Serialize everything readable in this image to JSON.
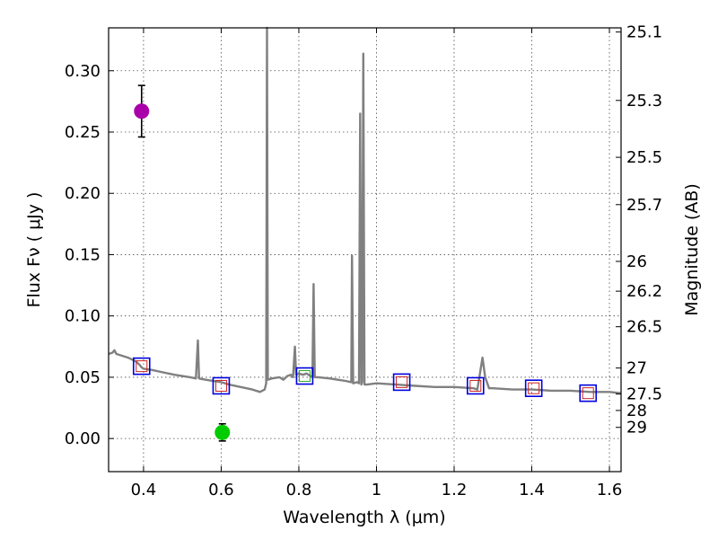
{
  "chart_data": {
    "type": "line",
    "xlabel": "Wavelength  λ (μm)",
    "ylabel": "Flux  Fν  ( μJy )",
    "ylabel_right": "Magnitude (AB)",
    "xlim": [
      0.31,
      1.63
    ],
    "ylim": [
      -0.027,
      0.335
    ],
    "x_ticks": [
      0.4,
      0.6,
      0.8,
      1.0,
      1.2,
      1.4,
      1.6
    ],
    "x_tick_labels": [
      "0.4",
      "0.6",
      "0.8",
      "1",
      "1.2",
      "1.4",
      "1.6"
    ],
    "y_ticks": [
      0.0,
      0.05,
      0.1,
      0.15,
      0.2,
      0.25,
      0.3
    ],
    "y_tick_labels": [
      "0.00",
      "0.05",
      "0.10",
      "0.15",
      "0.20",
      "0.25",
      "0.30"
    ],
    "right_ticks": [
      {
        "label": "25.1",
        "flux": 0.3316
      },
      {
        "label": "25.3",
        "flux": 0.2758
      },
      {
        "label": "25.5",
        "flux": 0.2294
      },
      {
        "label": "25.7",
        "flux": 0.1908
      },
      {
        "label": "26",
        "flux": 0.1445
      },
      {
        "label": "26.2",
        "flux": 0.1202
      },
      {
        "label": "26.5",
        "flux": 0.0912
      },
      {
        "label": "27",
        "flux": 0.0575
      },
      {
        "label": "27.5",
        "flux": 0.0363
      },
      {
        "label": "28",
        "flux": 0.0229
      },
      {
        "label": "29",
        "flux": 0.0091
      }
    ],
    "grid": true,
    "sed_model": {
      "name": "model SED",
      "color": "#808080",
      "points": [
        [
          0.31,
          0.069
        ],
        [
          0.32,
          0.07
        ],
        [
          0.325,
          0.072
        ],
        [
          0.33,
          0.069
        ],
        [
          0.34,
          0.068
        ],
        [
          0.36,
          0.066
        ],
        [
          0.38,
          0.063
        ],
        [
          0.39,
          0.06
        ],
        [
          0.395,
          0.058
        ],
        [
          0.4,
          0.057
        ],
        [
          0.42,
          0.056
        ],
        [
          0.45,
          0.054
        ],
        [
          0.48,
          0.052
        ],
        [
          0.5,
          0.051
        ],
        [
          0.52,
          0.05
        ],
        [
          0.535,
          0.049
        ],
        [
          0.54,
          0.08
        ],
        [
          0.543,
          0.049
        ],
        [
          0.56,
          0.048
        ],
        [
          0.6,
          0.046
        ],
        [
          0.62,
          0.044
        ],
        [
          0.65,
          0.042
        ],
        [
          0.68,
          0.04
        ],
        [
          0.7,
          0.038
        ],
        [
          0.712,
          0.04
        ],
        [
          0.716,
          0.045
        ],
        [
          0.718,
          0.335
        ],
        [
          0.72,
          0.048
        ],
        [
          0.73,
          0.049
        ],
        [
          0.75,
          0.05
        ],
        [
          0.76,
          0.048
        ],
        [
          0.77,
          0.051
        ],
        [
          0.78,
          0.052
        ],
        [
          0.785,
          0.05
        ],
        [
          0.79,
          0.075
        ],
        [
          0.793,
          0.052
        ],
        [
          0.8,
          0.053
        ],
        [
          0.81,
          0.052
        ],
        [
          0.82,
          0.053
        ],
        [
          0.83,
          0.051
        ],
        [
          0.835,
          0.05
        ],
        [
          0.838,
          0.126
        ],
        [
          0.841,
          0.05
        ],
        [
          0.85,
          0.05
        ],
        [
          0.88,
          0.049
        ],
        [
          0.9,
          0.048
        ],
        [
          0.92,
          0.047
        ],
        [
          0.935,
          0.046
        ],
        [
          0.937,
          0.149
        ],
        [
          0.94,
          0.045
        ],
        [
          0.95,
          0.046
        ],
        [
          0.955,
          0.045
        ],
        [
          0.958,
          0.265
        ],
        [
          0.961,
          0.044
        ],
        [
          0.963,
          0.046
        ],
        [
          0.966,
          0.314
        ],
        [
          0.969,
          0.044
        ],
        [
          0.975,
          0.044
        ],
        [
          1.0,
          0.045
        ],
        [
          1.05,
          0.044
        ],
        [
          1.1,
          0.043
        ],
        [
          1.15,
          0.042
        ],
        [
          1.2,
          0.042
        ],
        [
          1.25,
          0.041
        ],
        [
          1.26,
          0.04
        ],
        [
          1.265,
          0.05
        ],
        [
          1.273,
          0.066
        ],
        [
          1.28,
          0.05
        ],
        [
          1.29,
          0.041
        ],
        [
          1.3,
          0.041
        ],
        [
          1.35,
          0.04
        ],
        [
          1.4,
          0.04
        ],
        [
          1.45,
          0.039
        ],
        [
          1.5,
          0.039
        ],
        [
          1.55,
          0.038
        ],
        [
          1.6,
          0.038
        ],
        [
          1.63,
          0.037
        ]
      ]
    },
    "band_points": [
      {
        "x": 0.395,
        "y": 0.059
      },
      {
        "x": 0.6,
        "y": 0.043
      },
      {
        "x": 0.815,
        "y": 0.051
      },
      {
        "x": 1.065,
        "y": 0.046
      },
      {
        "x": 1.255,
        "y": 0.043
      },
      {
        "x": 1.405,
        "y": 0.041
      },
      {
        "x": 1.545,
        "y": 0.037
      }
    ],
    "band_color": "#0000dd",
    "inner_marker_color": "#cc2222",
    "inner_marker_green_color": "#22aa22",
    "observations": [
      {
        "name": "magenta detection",
        "x": 0.395,
        "y": 0.267,
        "yerr": 0.021,
        "color": "#aa00aa"
      },
      {
        "name": "green detection",
        "x": 0.603,
        "y": 0.005,
        "yerr": 0.007,
        "color": "#00cc00"
      }
    ]
  }
}
